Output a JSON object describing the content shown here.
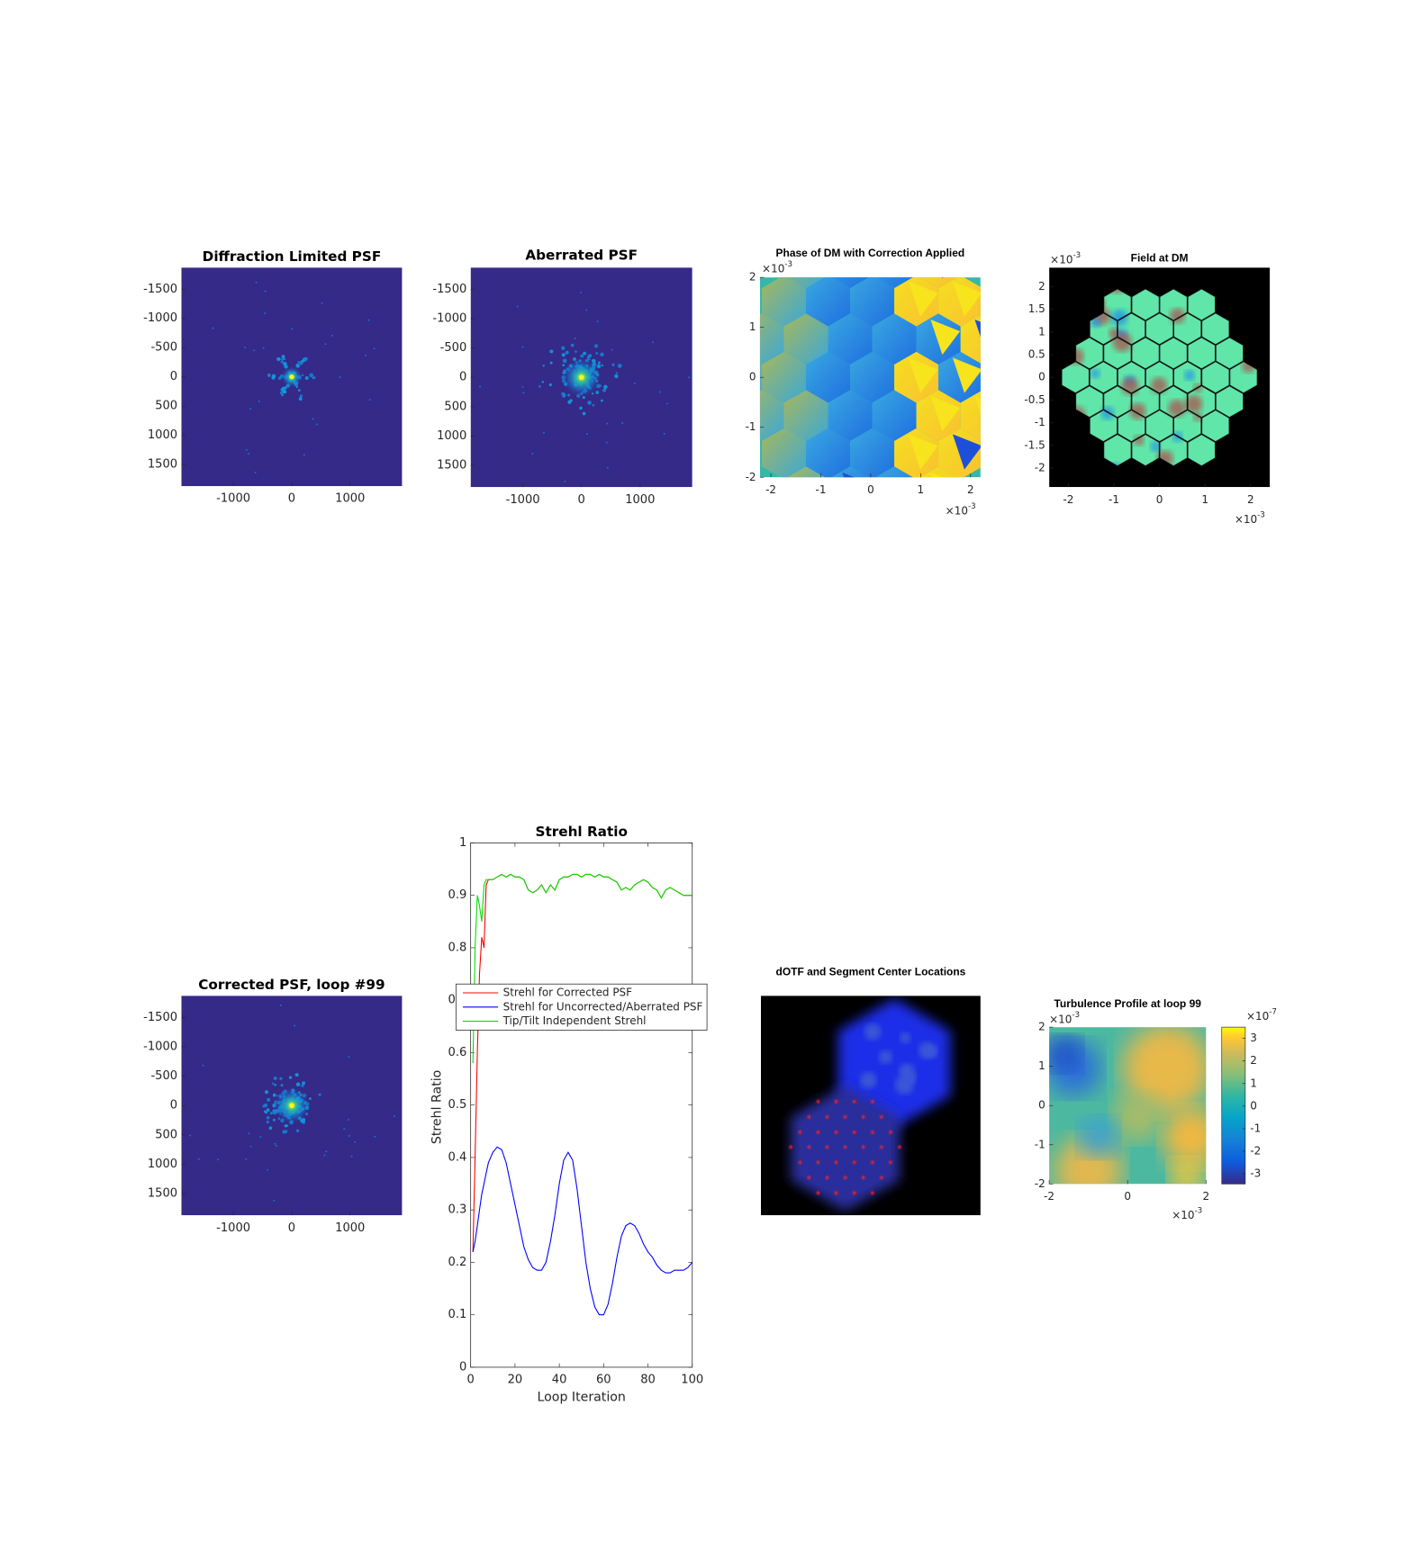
{
  "chart_data": [
    {
      "type": "image",
      "title": "Diffraction Limited PSF",
      "xlim": [
        -1890,
        1890
      ],
      "ylim": [
        -1870,
        1870
      ],
      "ydir": "reverse",
      "xticks": [
        -1000,
        0,
        1000
      ],
      "yticks": [
        -1500,
        -1000,
        -500,
        0,
        500,
        1000,
        1500
      ]
    },
    {
      "type": "image",
      "title": "Aberrated PSF",
      "xlim": [
        -1890,
        1890
      ],
      "ylim": [
        -1870,
        1870
      ],
      "ydir": "reverse",
      "xticks": [
        -1000,
        0,
        1000
      ],
      "yticks": [
        -1500,
        -1000,
        -500,
        0,
        500,
        1000,
        1500
      ]
    },
    {
      "type": "image",
      "title": "Phase of DM with Correction Applied",
      "xlim": [
        -0.00222,
        0.0022
      ],
      "ylim": [
        -0.002,
        0.002
      ],
      "xticks": [
        {
          "value": -0.002,
          "label": "-2"
        },
        {
          "value": -0.001,
          "label": "-1"
        },
        {
          "value": 0,
          "label": "0"
        },
        {
          "value": 0.001,
          "label": "1"
        },
        {
          "value": 0.002,
          "label": "2"
        }
      ],
      "yticks": [
        {
          "value": -0.002,
          "label": "-2"
        },
        {
          "value": -0.001,
          "label": "-1"
        },
        {
          "value": 0,
          "label": "0"
        },
        {
          "value": 0.001,
          "label": "1"
        },
        {
          "value": 0.002,
          "label": "2"
        }
      ],
      "x_exponent": {
        "base": "×10",
        "power": "-3"
      },
      "y_exponent": {
        "base": "×10",
        "power": "-3"
      }
    },
    {
      "type": "image",
      "title": "Field at DM",
      "xlim": [
        -0.00242,
        0.00242
      ],
      "ylim": [
        -0.00242,
        0.00242
      ],
      "xticks": [
        {
          "value": -0.002,
          "label": "-2"
        },
        {
          "value": -0.001,
          "label": "-1"
        },
        {
          "value": 0,
          "label": "0"
        },
        {
          "value": 0.001,
          "label": "1"
        },
        {
          "value": 0.002,
          "label": "2"
        }
      ],
      "yticks": [
        {
          "value": -0.002,
          "label": "-2"
        },
        {
          "value": -0.0015,
          "label": "-1.5"
        },
        {
          "value": -0.001,
          "label": "-1"
        },
        {
          "value": -0.0005,
          "label": "-0.5"
        },
        {
          "value": 0,
          "label": "0"
        },
        {
          "value": 0.0005,
          "label": "0.5"
        },
        {
          "value": 0.001,
          "label": "1"
        },
        {
          "value": 0.0015,
          "label": "1.5"
        },
        {
          "value": 0.002,
          "label": "2"
        }
      ],
      "x_exponent": {
        "base": "×10",
        "power": "-3"
      },
      "y_exponent": {
        "base": "×10",
        "power": "-3"
      }
    },
    {
      "type": "image",
      "title": "Corrected PSF, loop #99",
      "xlim": [
        -1890,
        1890
      ],
      "ylim": [
        -1870,
        1870
      ],
      "ydir": "reverse",
      "xticks": [
        -1000,
        0,
        1000
      ],
      "yticks": [
        -1500,
        -1000,
        -500,
        0,
        500,
        1000,
        1500
      ]
    },
    {
      "type": "line",
      "title": "Strehl Ratio",
      "xlabel": "Loop Iteration",
      "ylabel": "Strehl Ratio",
      "xlim": [
        0,
        100
      ],
      "ylim": [
        0,
        1
      ],
      "xticks": [
        0,
        20,
        40,
        60,
        80,
        100
      ],
      "yticks": [
        0,
        0.1,
        0.2,
        0.3,
        0.4,
        0.5,
        0.6,
        0.7,
        0.8,
        0.9,
        1
      ],
      "x": [
        1,
        2,
        3,
        4,
        5,
        6,
        7,
        8,
        10,
        12,
        14,
        16,
        18,
        20,
        22,
        24,
        26,
        28,
        30,
        32,
        34,
        36,
        38,
        40,
        42,
        44,
        46,
        48,
        50,
        52,
        54,
        56,
        58,
        60,
        62,
        64,
        66,
        68,
        70,
        72,
        74,
        76,
        78,
        80,
        82,
        84,
        86,
        88,
        90,
        92,
        94,
        96,
        98,
        100
      ],
      "series": [
        {
          "name": "Strehl for Corrected PSF",
          "color": "#ff0000",
          "values": [
            0.22,
            0.4,
            0.6,
            0.75,
            0.82,
            0.8,
            0.92,
            0.93,
            0.93,
            0.935,
            0.94,
            0.935,
            0.94,
            0.935,
            0.935,
            0.93,
            0.91,
            0.905,
            0.91,
            0.92,
            0.905,
            0.92,
            0.91,
            0.93,
            0.935,
            0.935,
            0.94,
            0.94,
            0.935,
            0.94,
            0.94,
            0.935,
            0.94,
            0.935,
            0.935,
            0.93,
            0.925,
            0.91,
            0.915,
            0.91,
            0.92,
            0.925,
            0.93,
            0.925,
            0.915,
            0.91,
            0.895,
            0.91,
            0.915,
            0.91,
            0.905,
            0.9,
            0.9,
            0.9
          ]
        },
        {
          "name": "Strehl for Uncorrected/Aberrated PSF",
          "color": "#0000ff",
          "values": [
            0.22,
            0.24,
            0.27,
            0.3,
            0.33,
            0.35,
            0.37,
            0.39,
            0.41,
            0.42,
            0.415,
            0.39,
            0.35,
            0.31,
            0.27,
            0.23,
            0.205,
            0.19,
            0.185,
            0.185,
            0.2,
            0.24,
            0.29,
            0.35,
            0.395,
            0.41,
            0.395,
            0.34,
            0.27,
            0.2,
            0.15,
            0.115,
            0.1,
            0.1,
            0.12,
            0.16,
            0.21,
            0.25,
            0.27,
            0.275,
            0.27,
            0.255,
            0.235,
            0.22,
            0.21,
            0.195,
            0.185,
            0.18,
            0.18,
            0.185,
            0.185,
            0.185,
            0.19,
            0.2
          ]
        },
        {
          "name": "Tip/Tilt Independent Strehl",
          "color": "#00e000",
          "values": [
            0.58,
            0.8,
            0.9,
            0.88,
            0.85,
            0.92,
            0.93,
            0.93,
            0.93,
            0.935,
            0.94,
            0.935,
            0.94,
            0.935,
            0.935,
            0.93,
            0.91,
            0.905,
            0.91,
            0.92,
            0.905,
            0.92,
            0.91,
            0.93,
            0.935,
            0.935,
            0.94,
            0.94,
            0.935,
            0.94,
            0.94,
            0.935,
            0.94,
            0.935,
            0.935,
            0.93,
            0.925,
            0.91,
            0.915,
            0.91,
            0.92,
            0.925,
            0.93,
            0.925,
            0.915,
            0.91,
            0.895,
            0.91,
            0.915,
            0.91,
            0.905,
            0.9,
            0.9,
            0.9
          ]
        }
      ]
    },
    {
      "type": "image",
      "title": "dOTF and Segment Center Locations"
    },
    {
      "type": "heatmap",
      "title": "Turbulence Profile at loop 99",
      "xlim": [
        -0.002,
        0.002
      ],
      "ylim": [
        -0.002,
        0.002
      ],
      "xticks": [
        {
          "value": -0.002,
          "label": "-2"
        },
        {
          "value": 0,
          "label": "0"
        },
        {
          "value": 0.002,
          "label": "2"
        }
      ],
      "yticks": [
        {
          "value": -0.002,
          "label": "-2"
        },
        {
          "value": -0.001,
          "label": "-1"
        },
        {
          "value": 0,
          "label": "0"
        },
        {
          "value": 0.001,
          "label": "1"
        },
        {
          "value": 0.002,
          "label": "2"
        }
      ],
      "x_exponent": {
        "base": "×10",
        "power": "-3"
      },
      "y_exponent": {
        "base": "×10",
        "power": "-3"
      },
      "colorbar": {
        "clim": [
          -3.45e-07,
          3.5e-07
        ],
        "exponent": {
          "base": "×10",
          "power": "-7"
        },
        "ticks": [
          {
            "value": -3e-07,
            "label": "-3"
          },
          {
            "value": -2e-07,
            "label": "-2"
          },
          {
            "value": -1e-07,
            "label": "-1"
          },
          {
            "value": 0,
            "label": "0"
          },
          {
            "value": 1e-07,
            "label": "1"
          },
          {
            "value": 2e-07,
            "label": "2"
          },
          {
            "value": 3e-07,
            "label": "3"
          }
        ]
      }
    }
  ]
}
